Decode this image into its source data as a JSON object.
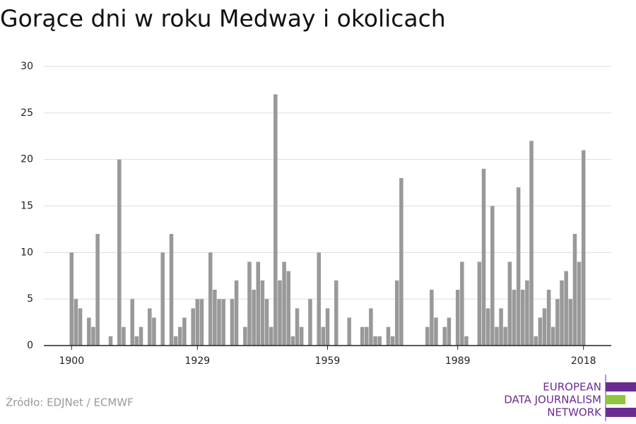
{
  "chart_data": {
    "type": "bar",
    "title": "Gorące dni w roku Medway i okolicach",
    "x": [
      1900,
      1901,
      1902,
      1903,
      1904,
      1905,
      1906,
      1907,
      1908,
      1909,
      1910,
      1911,
      1912,
      1913,
      1914,
      1915,
      1916,
      1917,
      1918,
      1919,
      1920,
      1921,
      1922,
      1923,
      1924,
      1925,
      1926,
      1927,
      1928,
      1929,
      1930,
      1931,
      1932,
      1933,
      1934,
      1935,
      1936,
      1937,
      1938,
      1939,
      1940,
      1941,
      1942,
      1943,
      1944,
      1945,
      1946,
      1947,
      1948,
      1949,
      1950,
      1951,
      1952,
      1953,
      1954,
      1955,
      1956,
      1957,
      1958,
      1959,
      1960,
      1961,
      1962,
      1963,
      1964,
      1965,
      1966,
      1967,
      1968,
      1969,
      1970,
      1971,
      1972,
      1973,
      1974,
      1975,
      1976,
      1977,
      1978,
      1979,
      1980,
      1981,
      1982,
      1983,
      1984,
      1985,
      1986,
      1987,
      1988,
      1989,
      1990,
      1991,
      1992,
      1993,
      1994,
      1995,
      1996,
      1997,
      1998,
      1999,
      2000,
      2001,
      2002,
      2003,
      2004,
      2005,
      2006,
      2007,
      2008,
      2009,
      2010,
      2011,
      2012,
      2013,
      2014,
      2015,
      2016,
      2017,
      2018
    ],
    "values": [
      10,
      5,
      4,
      0,
      3,
      2,
      12,
      0,
      0,
      1,
      0,
      20,
      2,
      0,
      5,
      1,
      2,
      0,
      4,
      3,
      0,
      10,
      0,
      12,
      1,
      2,
      3,
      0,
      4,
      5,
      5,
      0,
      10,
      6,
      5,
      5,
      0,
      5,
      7,
      0,
      2,
      9,
      6,
      9,
      7,
      5,
      2,
      27,
      7,
      9,
      8,
      1,
      4,
      2,
      0,
      5,
      0,
      10,
      2,
      4,
      0,
      7,
      0,
      0,
      3,
      0,
      0,
      2,
      2,
      4,
      1,
      1,
      0,
      2,
      1,
      7,
      18,
      0,
      0,
      0,
      0,
      0,
      2,
      6,
      3,
      0,
      2,
      3,
      0,
      6,
      9,
      1,
      0,
      0,
      9,
      19,
      4,
      15,
      2,
      4,
      2,
      9,
      6,
      17,
      6,
      7,
      22,
      1,
      3,
      4,
      6,
      2,
      5,
      7,
      8,
      5,
      12,
      9,
      21
    ],
    "color": "#999999",
    "xlim": [
      1893.6,
      2024.4
    ],
    "xticks": [
      1900,
      1929,
      1959,
      1989,
      2018
    ],
    "ylim": [
      0,
      30
    ],
    "yticks": [
      0,
      5,
      10,
      15,
      20,
      25,
      30
    ],
    "grid": true,
    "source": "Źródło: EDJNet / ECMWF"
  },
  "logo": {
    "lines": [
      "EUROPEAN",
      "DATA JOURNALISM",
      "NETWORK"
    ]
  }
}
